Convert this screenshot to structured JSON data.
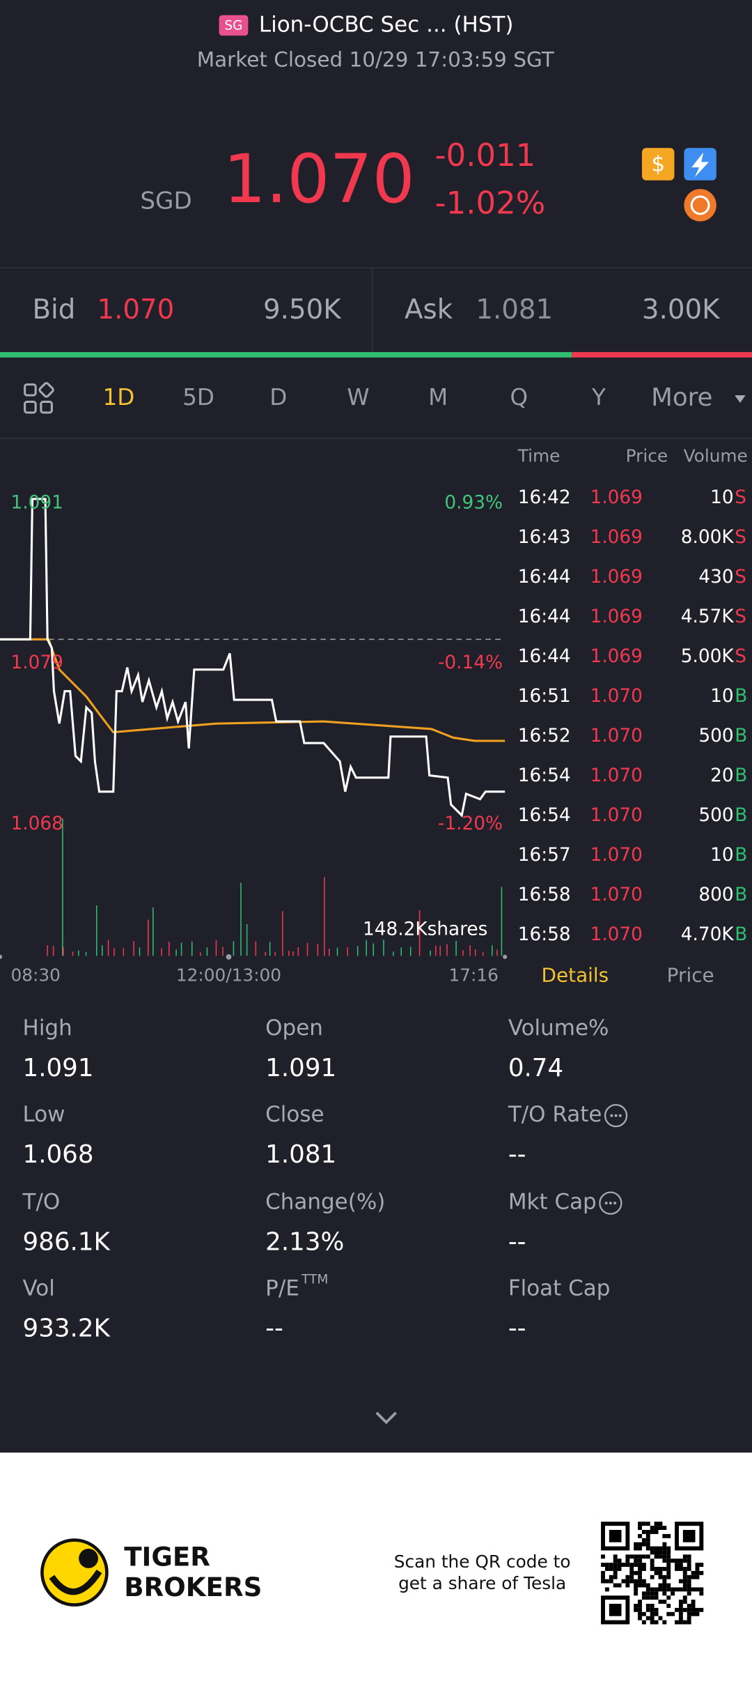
{
  "header": {
    "badge": "SG",
    "title": "Lion-OCBC Sec ... (HST)",
    "status": "Market Closed 10/29 17:03:59 SGT"
  },
  "quote": {
    "currency": "SGD",
    "price": "1.070",
    "change": "-0.011",
    "change_pct": "-1.02%"
  },
  "bid_ask": {
    "bid_label": "Bid",
    "bid": "1.070",
    "bid_size": "9.50K",
    "ask_label": "Ask",
    "ask": "1.081",
    "ask_size": "3.00K"
  },
  "tabs": [
    "1D",
    "5D",
    "D",
    "W",
    "M",
    "Q",
    "Y",
    "More"
  ],
  "chart": {
    "high": "1.091",
    "high_pct": "0.93%",
    "mid": "1.079",
    "mid_pct": "-0.14%",
    "low": "1.068",
    "low_pct": "-1.20%",
    "volume": "148.2Kshares",
    "times": [
      "08:30",
      "12:00/13:00",
      "17:16"
    ]
  },
  "trades": {
    "headers": [
      "Time",
      "Price",
      "Volume"
    ],
    "rows": [
      {
        "time": "16:42",
        "price": "1.069",
        "volume": "10",
        "side": "S"
      },
      {
        "time": "16:43",
        "price": "1.069",
        "volume": "8.00K",
        "side": "S"
      },
      {
        "time": "16:44",
        "price": "1.069",
        "volume": "430",
        "side": "S"
      },
      {
        "time": "16:44",
        "price": "1.069",
        "volume": "4.57K",
        "side": "S"
      },
      {
        "time": "16:44",
        "price": "1.069",
        "volume": "5.00K",
        "side": "S"
      },
      {
        "time": "16:51",
        "price": "1.070",
        "volume": "10",
        "side": "B"
      },
      {
        "time": "16:52",
        "price": "1.070",
        "volume": "500",
        "side": "B"
      },
      {
        "time": "16:54",
        "price": "1.070",
        "volume": "20",
        "side": "B"
      },
      {
        "time": "16:54",
        "price": "1.070",
        "volume": "500",
        "side": "B"
      },
      {
        "time": "16:57",
        "price": "1.070",
        "volume": "10",
        "side": "B"
      },
      {
        "time": "16:58",
        "price": "1.070",
        "volume": "800",
        "side": "B"
      },
      {
        "time": "16:58",
        "price": "1.070",
        "volume": "4.70K",
        "side": "B"
      }
    ]
  },
  "detail_tabs": [
    "Details",
    "Price"
  ],
  "stats": [
    {
      "label": "High",
      "value": "1.091"
    },
    {
      "label": "Open",
      "value": "1.091"
    },
    {
      "label": "Volume%",
      "value": "0.74"
    },
    {
      "label": "Low",
      "value": "1.068"
    },
    {
      "label": "Close",
      "value": "1.081"
    },
    {
      "label": "T/O Rate",
      "value": "--"
    },
    {
      "label": "T/O",
      "value": "986.1K"
    },
    {
      "label": "Change(%)",
      "value": "2.13%"
    },
    {
      "label": "Mkt Cap",
      "value": "--"
    },
    {
      "label": "Vol",
      "value": "933.2K"
    },
    {
      "label": "P/E",
      "label_sup": "TTM",
      "value": "--"
    },
    {
      "label": "Float Cap",
      "value": "--"
    }
  ],
  "footer": {
    "brand": [
      "TIGER",
      "BROKERS"
    ],
    "promo": [
      "Scan the QR code to",
      "get a share of Tesla"
    ]
  }
}
